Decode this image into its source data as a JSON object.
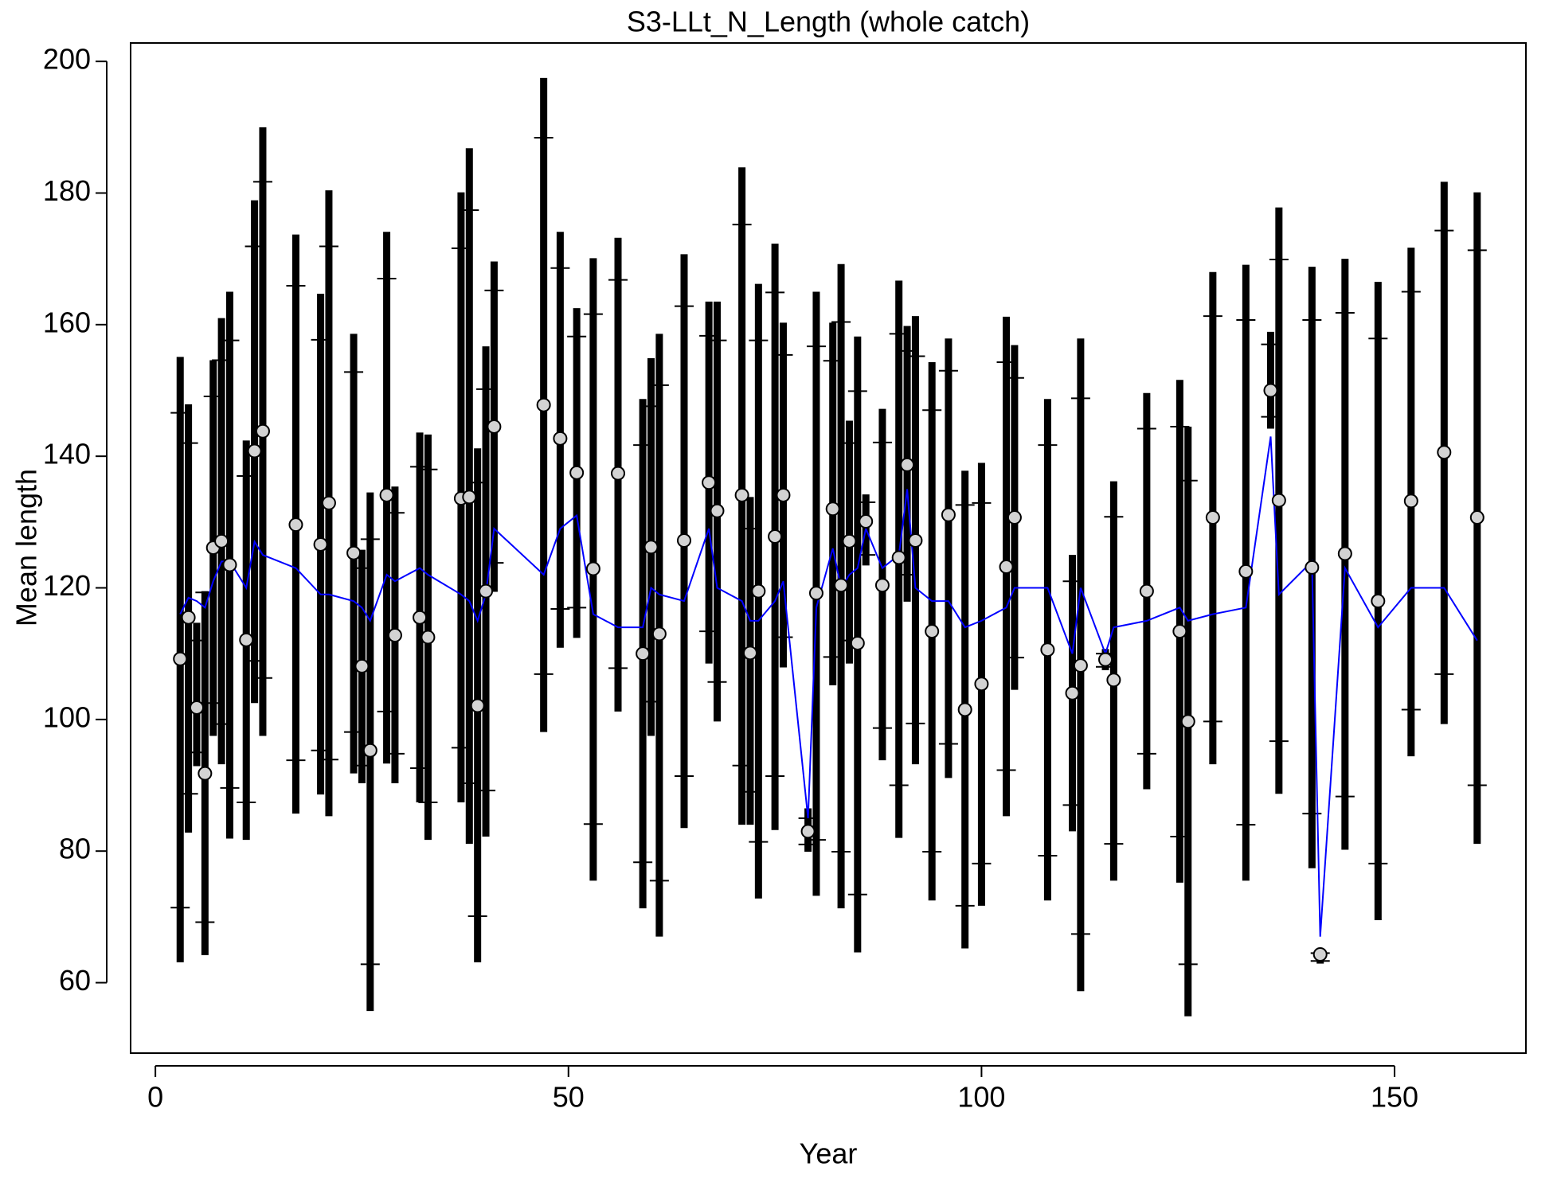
{
  "chart_data": {
    "type": "errorbar",
    "title": "S3-LLt_N_Length (whole catch)",
    "x_label": "Year",
    "y_label": "Mean length",
    "xlim": [
      -3,
      165.9
    ],
    "ylim": [
      49.3,
      202.8
    ],
    "xticks": [
      0,
      50,
      100,
      150
    ],
    "yticks": [
      60,
      80,
      100,
      120,
      140,
      160,
      180,
      200
    ],
    "bar_color": "#000000",
    "point_fill": "#d3d3d3",
    "line_color": "#0000ff",
    "x": [
      3,
      4,
      5,
      6,
      7,
      8,
      9,
      11,
      12,
      13,
      17,
      20,
      21,
      24,
      25,
      26,
      28,
      29,
      32,
      33,
      37,
      38,
      39,
      40,
      41,
      47,
      49,
      51,
      53,
      56,
      59,
      60,
      61,
      64,
      67,
      68,
      71,
      72,
      73,
      75,
      76,
      79,
      80,
      82,
      83,
      84,
      85,
      86,
      88,
      90,
      91,
      92,
      94,
      96,
      98,
      100,
      103,
      104,
      108,
      111,
      112,
      115,
      116,
      120,
      124,
      125,
      128,
      132,
      135,
      136,
      140,
      141,
      144,
      148,
      152,
      156,
      160
    ],
    "observed": [
      109.2,
      115.5,
      101.8,
      91.8,
      126.1,
      127.1,
      123.5,
      112.1,
      140.8,
      143.8,
      129.6,
      126.6,
      132.9,
      125.3,
      108.1,
      95.3,
      134.1,
      112.8,
      115.5,
      112.5,
      133.6,
      133.8,
      102.1,
      119.5,
      144.5,
      147.8,
      142.7,
      137.5,
      122.9,
      137.4,
      110,
      126.2,
      113,
      127.2,
      136,
      131.7,
      134.1,
      110.1,
      119.5,
      127.8,
      134.1,
      83,
      119.2,
      132,
      120.4,
      127.1,
      111.6,
      130.1,
      120.4,
      124.6,
      138.7,
      127.2,
      113.4,
      131.1,
      101.5,
      105.4,
      123.2,
      130.7,
      110.6,
      104,
      108.2,
      109.1,
      106,
      119.5,
      113.4,
      99.7,
      130.7,
      122.5,
      150,
      133.3,
      123.1,
      64.3,
      125.2,
      118,
      133.2,
      140.6,
      130.7
    ],
    "expected": [
      116,
      118.5,
      118,
      117,
      121,
      124,
      124,
      120,
      127,
      125,
      123,
      119,
      119,
      118,
      117,
      115,
      122,
      121,
      123,
      122,
      119,
      118,
      115,
      119,
      129,
      122,
      129,
      131,
      116,
      114,
      114,
      120,
      119,
      118,
      129,
      120,
      118,
      115,
      115,
      118,
      121,
      85,
      117,
      126,
      120,
      122,
      123,
      129,
      123,
      125,
      135,
      120,
      118,
      118,
      114,
      115,
      117,
      120,
      120,
      110,
      120,
      110,
      114,
      115,
      117,
      115,
      116,
      117,
      143,
      119,
      124,
      67,
      123,
      114,
      120,
      120,
      112
    ],
    "bar_upper": [
      155.1,
      147.9,
      114.7,
      119.5,
      154.6,
      161,
      165,
      142.4,
      178.9,
      190,
      173.7,
      164.7,
      180.4,
      158.6,
      125.8,
      134.5,
      174.1,
      135.4,
      143.6,
      143.3,
      180.1,
      186.8,
      141.2,
      156.7,
      169.6,
      197.5,
      174.1,
      162.5,
      170.1,
      173.2,
      148.7,
      154.9,
      158.6,
      170.7,
      163.5,
      163.5,
      183.9,
      133.8,
      166.2,
      172.3,
      160.3,
      86.5,
      165,
      160.3,
      169.2,
      145.4,
      158.2,
      134.2,
      147.2,
      166.7,
      159.8,
      161.3,
      154.3,
      157.9,
      137.8,
      139,
      161.2,
      156.9,
      148.7,
      125,
      157.9,
      110.7,
      136.2,
      149.6,
      151.6,
      144.5,
      168,
      169.1,
      158.9,
      177.8,
      168.8,
      64.9,
      170,
      166.5,
      171.7,
      181.7,
      180.1
    ],
    "bar_lower": [
      63.1,
      82.8,
      92.9,
      64.2,
      97.5,
      93.2,
      81.9,
      81.7,
      102.5,
      97.5,
      85.7,
      88.6,
      85.3,
      91.8,
      90.3,
      55.7,
      93.3,
      90.3,
      87.4,
      81.7,
      87.4,
      81.1,
      63.1,
      82.2,
      119.4,
      98.1,
      110.9,
      112.4,
      75.5,
      101.2,
      71.3,
      97.5,
      67,
      83.5,
      108.5,
      99.7,
      84,
      84,
      72.8,
      83.2,
      107.9,
      79.9,
      73.2,
      105.2,
      71.3,
      108.5,
      64.6,
      123.4,
      93.8,
      82,
      117.9,
      93.2,
      72.5,
      91.1,
      65.2,
      71.7,
      85.3,
      104.5,
      72.5,
      83,
      58.7,
      107.5,
      75.5,
      89.4,
      75.2,
      54.9,
      93.2,
      75.5,
      144.2,
      88.7,
      77.4,
      62.9,
      80.2,
      69.5,
      94.4,
      99.3,
      81.1
    ],
    "inner_upper": [
      146.6,
      142,
      112,
      119.3,
      149.1,
      154.6,
      157.6,
      137,
      171.9,
      181.7,
      165.9,
      157.7,
      171.9,
      152.8,
      123,
      127.4,
      167,
      131.4,
      138.4,
      138,
      171.6,
      177.4,
      136,
      150.2,
      165.2,
      188.4,
      168.6,
      158.2,
      161.6,
      166.8,
      141.7,
      147.6,
      150.8,
      162.8,
      158.3,
      157.6,
      175.2,
      129,
      157.6,
      164.9,
      155.4,
      85,
      156.7,
      154.5,
      160.4,
      142,
      149.9,
      133,
      142.1,
      158.6,
      156,
      155.2,
      147,
      153,
      132.6,
      132.9,
      154.3,
      151.9,
      141.7,
      121,
      148.8,
      110,
      130.8,
      144.2,
      144.5,
      136.3,
      161.3,
      160.7,
      157,
      169.9,
      160.7,
      64.5,
      161.8,
      157.9,
      165,
      174.3,
      171.3
    ],
    "inner_lower": [
      71.4,
      88.7,
      95,
      69.2,
      102.5,
      99.3,
      89.6,
      87.4,
      108.9,
      106.3,
      93.8,
      95.3,
      93.9,
      98.1,
      93,
      62.8,
      101.2,
      94.8,
      92.6,
      87.4,
      95.7,
      90.3,
      70.1,
      89.2,
      123.8,
      106.9,
      116.8,
      117,
      84.1,
      107.8,
      78.3,
      102.7,
      75.5,
      91.4,
      113.4,
      105.7,
      93,
      89,
      81.4,
      91.4,
      112.5,
      81,
      81.7,
      109.5,
      79.9,
      112,
      73.4,
      125,
      98.7,
      90,
      122,
      99.4,
      79.9,
      96.3,
      71.7,
      78.1,
      92.3,
      109.4,
      79.3,
      87,
      67.4,
      108,
      81.1,
      94.8,
      82.2,
      62.8,
      99.7,
      84,
      146,
      96.7,
      85.7,
      63.3,
      88.3,
      78.1,
      101.5,
      106.9,
      90
    ]
  }
}
